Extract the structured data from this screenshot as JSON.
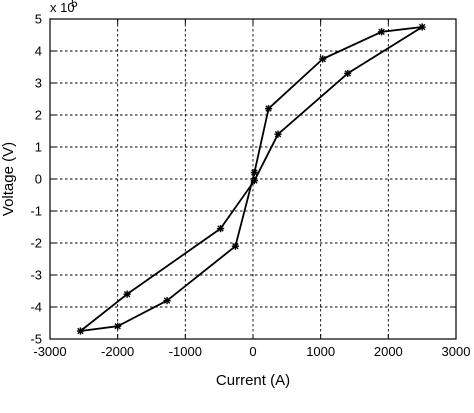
{
  "chart_data": {
    "type": "line",
    "title": "",
    "xlabel": "Current (A)",
    "ylabel": "Voltage (V)",
    "y_exponent_prefix": "x 10",
    "y_exponent_power": "5",
    "xlim": [
      -3000,
      3000
    ],
    "ylim": [
      -5,
      5
    ],
    "y_scale": 100000,
    "x_ticks": [
      -3000,
      -2000,
      -1000,
      0,
      1000,
      2000,
      3000
    ],
    "x_tick_labels": [
      "-3000",
      "-2000",
      "-1000",
      "0",
      "1000",
      "2000",
      "3000"
    ],
    "y_ticks": [
      -5,
      -4,
      -3,
      -2,
      -1,
      0,
      1,
      2,
      3,
      4,
      5
    ],
    "y_tick_labels": [
      "-5",
      "-4",
      "-3",
      "-2",
      "-1",
      "0",
      "1",
      "2",
      "3",
      "4",
      "5"
    ],
    "grid": true,
    "series": [
      {
        "points": [
          [
            2500,
            4.75
          ],
          [
            1900,
            4.6
          ],
          [
            1030,
            3.75
          ],
          [
            230,
            2.2
          ],
          [
            20,
            0.2
          ],
          [
            -260,
            -2.1
          ],
          [
            -1270,
            -3.8
          ],
          [
            -2000,
            -4.6
          ],
          [
            -2550,
            -4.75
          ],
          [
            -1860,
            -3.6
          ],
          [
            -480,
            -1.55
          ],
          [
            20,
            -0.05
          ],
          [
            370,
            1.4
          ],
          [
            1400,
            3.3
          ],
          [
            2500,
            4.75
          ]
        ]
      }
    ]
  }
}
